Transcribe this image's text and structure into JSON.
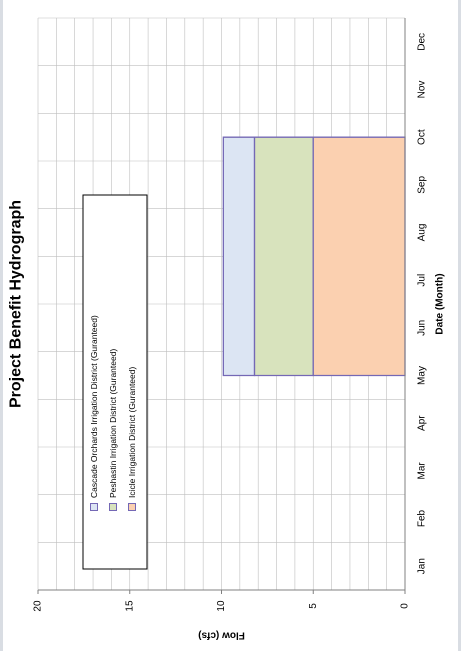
{
  "chart_data": {
    "type": "area",
    "orientation": "rotated-90-ccw",
    "title": "Project Benefit Hydrograph",
    "xlabel": "Date (Month)",
    "ylabel": "Flow (cfs)",
    "categories": [
      "Jan",
      "Feb",
      "Mar",
      "Apr",
      "May",
      "Jun",
      "Jul",
      "Aug",
      "Sep",
      "Oct",
      "Nov",
      "Dec"
    ],
    "ylim": [
      0,
      20
    ],
    "yticks": [
      0,
      5,
      10,
      15,
      20
    ],
    "grid": true,
    "stacked": true,
    "active_period": [
      "May",
      "Oct"
    ],
    "series": [
      {
        "name": "Icicle Irrigation District (Guranteed)",
        "color": "#fbd0b0",
        "values": [
          0,
          0,
          0,
          0,
          5,
          5,
          5,
          5,
          5,
          5,
          0,
          0
        ]
      },
      {
        "name": "Peshastin Irrigation District (Guranteed)",
        "color": "#d8e3bd",
        "values": [
          0,
          0,
          0,
          0,
          3.2,
          3.2,
          3.2,
          3.2,
          3.2,
          3.2,
          0,
          0
        ]
      },
      {
        "name": "Cascade Orchards Irrigation District (Guranteed)",
        "color": "#dce5f3",
        "values": [
          0,
          0,
          0,
          0,
          1.7,
          1.7,
          1.7,
          1.7,
          1.7,
          1.7,
          0,
          0
        ]
      }
    ],
    "legend_order": [
      "Cascade Orchards Irrigation District (Guranteed)",
      "Peshastin Irrigation District (Guranteed)",
      "Icicle Irrigation District (Guranteed)"
    ],
    "legend_position": "upper-left",
    "colors": {
      "edge": "#7468b5",
      "grid": "#bfbfbf",
      "axis": "#808080"
    }
  }
}
